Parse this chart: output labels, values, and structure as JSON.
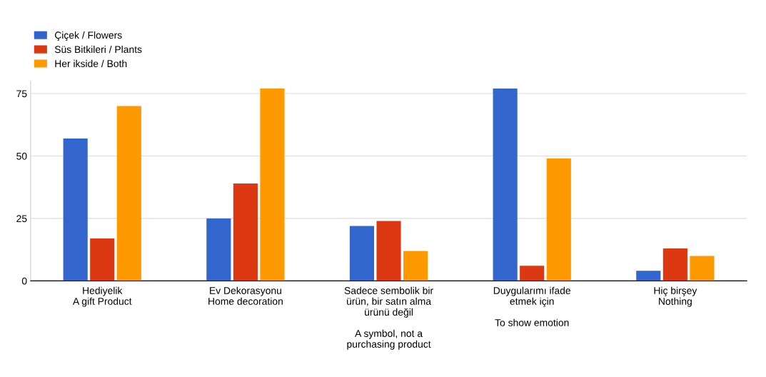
{
  "chart_data": {
    "type": "bar",
    "categories": [
      "Hediyelik\nA gift Product",
      "Ev Dekorasyonu\nHome decoration",
      "Sadece sembolik bir\nürün, bir satın alma\nürünü değil\n\nA symbol, not a\npurchasing product",
      "Duygularımı ifade\netmek için\n\nTo show emotion",
      "Hiç birşey\nNothing"
    ],
    "series": [
      {
        "name": "Çiçek / Flowers",
        "color": "#3366cc",
        "values": [
          57,
          25,
          22,
          77,
          4
        ]
      },
      {
        "name": "Süs Bitkileri / Plants",
        "color": "#dc3912",
        "values": [
          17,
          39,
          24,
          6,
          13
        ]
      },
      {
        "name": "Her ikside / Both",
        "color": "#ff9900",
        "values": [
          70,
          77,
          12,
          49,
          10
        ]
      }
    ],
    "ylim": [
      0,
      80
    ],
    "yticks": [
      0,
      25,
      50,
      75
    ],
    "grid": "y",
    "legend": "top left"
  }
}
